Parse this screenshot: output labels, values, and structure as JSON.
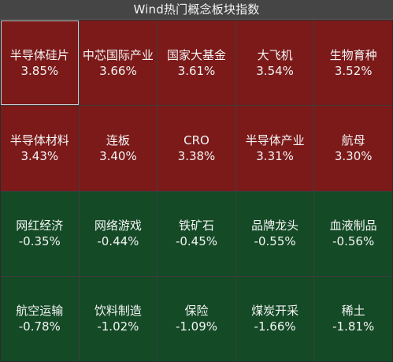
{
  "panel": {
    "title": "Wind热门概念板块指数"
  },
  "tiles": [
    {
      "name": "半导体硅片",
      "change": "3.85%",
      "trend": "up",
      "selected": true
    },
    {
      "name": "中芯国际产业",
      "change": "3.66%",
      "trend": "up"
    },
    {
      "name": "国家大基金",
      "change": "3.61%",
      "trend": "up"
    },
    {
      "name": "大飞机",
      "change": "3.54%",
      "trend": "up"
    },
    {
      "name": "生物育种",
      "change": "3.52%",
      "trend": "up"
    },
    {
      "name": "半导体材料",
      "change": "3.43%",
      "trend": "up"
    },
    {
      "name": "连板",
      "change": "3.40%",
      "trend": "up"
    },
    {
      "name": "CRO",
      "change": "3.38%",
      "trend": "up"
    },
    {
      "name": "半导体产业",
      "change": "3.31%",
      "trend": "up"
    },
    {
      "name": "航母",
      "change": "3.30%",
      "trend": "up"
    },
    {
      "name": "网红经济",
      "change": "-0.35%",
      "trend": "down"
    },
    {
      "name": "网络游戏",
      "change": "-0.44%",
      "trend": "down"
    },
    {
      "name": "铁矿石",
      "change": "-0.45%",
      "trend": "down"
    },
    {
      "name": "品牌龙头",
      "change": "-0.55%",
      "trend": "down"
    },
    {
      "name": "血液制品",
      "change": "-0.56%",
      "trend": "down"
    },
    {
      "name": "航空运输",
      "change": "-0.78%",
      "trend": "down"
    },
    {
      "name": "饮料制造",
      "change": "-1.02%",
      "trend": "down"
    },
    {
      "name": "保险",
      "change": "-1.09%",
      "trend": "down"
    },
    {
      "name": "煤炭开采",
      "change": "-1.66%",
      "trend": "down"
    },
    {
      "name": "稀土",
      "change": "-1.81%",
      "trend": "down"
    }
  ],
  "colors": {
    "up": "#7c1a1a",
    "down": "#144a26",
    "title_bar": "#454545",
    "text": "#f4f4f4"
  }
}
